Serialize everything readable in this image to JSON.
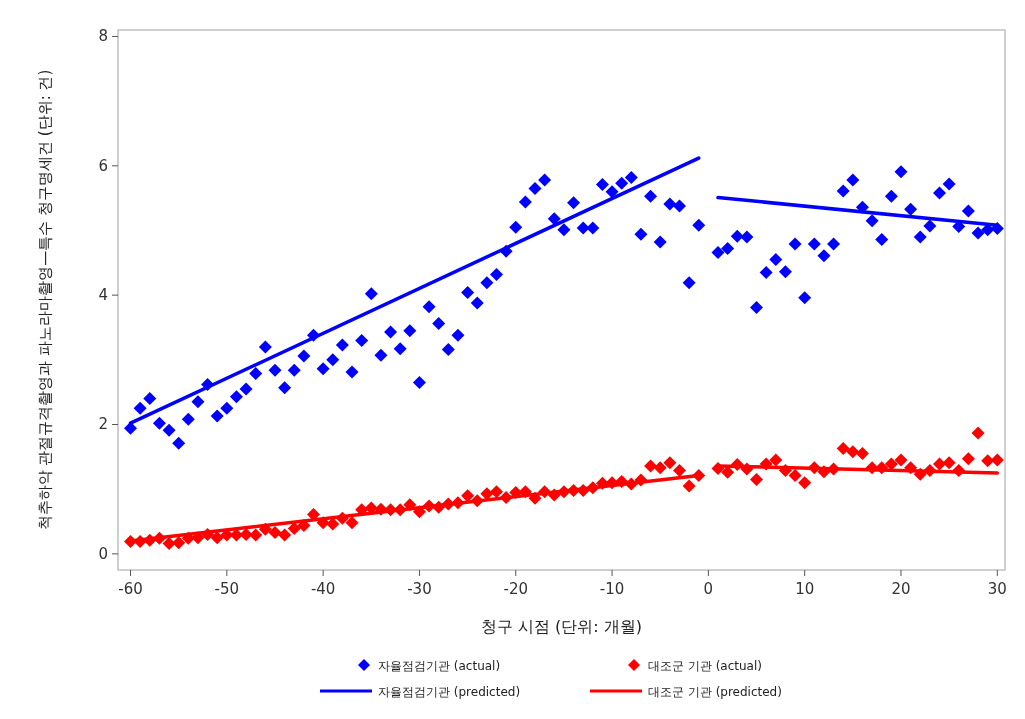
{
  "chart_data": {
    "type": "scatter",
    "xlabel": "청구 시점 (단위: 개월)",
    "ylabel": "척추하악 관절규격촬영과 파노라마촬영—특수 청구명세건 (단위: 건)",
    "xlim": [
      -61.3,
      30.8
    ],
    "ylim": [
      -0.25,
      8.1
    ],
    "xticks": [
      -60,
      -50,
      -40,
      -30,
      -20,
      -10,
      0,
      10,
      20,
      30
    ],
    "yticks": [
      0,
      2,
      4,
      6,
      8
    ],
    "grid": false,
    "legend": "bottom",
    "series": [
      {
        "name": "자율점검기관 (actual)",
        "type": "scatter",
        "marker": "diamond",
        "color": "#0000ff",
        "x": [
          -60,
          -59,
          -58,
          -57,
          -56,
          -55,
          -54,
          -53,
          -52,
          -51,
          -50,
          -49,
          -48,
          -47,
          -46,
          -45,
          -44,
          -43,
          -42,
          -41,
          -40,
          -39,
          -38,
          -37,
          -36,
          -35,
          -34,
          -33,
          -32,
          -31,
          -30,
          -29,
          -28,
          -27,
          -26,
          -25,
          -24,
          -23,
          -22,
          -21,
          -20,
          -19,
          -18,
          -17,
          -16,
          -15,
          -14,
          -13,
          -12,
          -11,
          -10,
          -9,
          -8,
          -7,
          -6,
          -5,
          -4,
          -3,
          -2,
          -1,
          1,
          2,
          3,
          4,
          5,
          6,
          7,
          8,
          9,
          10,
          11,
          12,
          13,
          14,
          15,
          16,
          17,
          18,
          19,
          20,
          21,
          22,
          23,
          24,
          25,
          26,
          27,
          28,
          29,
          30
        ],
        "values": [
          1.94,
          2.25,
          2.4,
          2.02,
          1.91,
          1.71,
          2.08,
          2.35,
          2.62,
          2.13,
          2.25,
          2.43,
          2.55,
          2.79,
          3.2,
          2.84,
          2.57,
          2.84,
          3.06,
          3.38,
          2.86,
          3.0,
          3.23,
          2.81,
          3.3,
          4.02,
          3.07,
          3.43,
          3.17,
          3.45,
          2.65,
          3.82,
          3.56,
          3.16,
          3.38,
          4.04,
          3.88,
          4.19,
          4.32,
          4.68,
          5.05,
          5.44,
          5.65,
          5.78,
          5.18,
          5.01,
          5.43,
          5.04,
          5.04,
          5.71,
          5.6,
          5.73,
          5.82,
          4.94,
          5.53,
          4.82,
          5.41,
          5.38,
          4.19,
          5.08,
          4.66,
          4.72,
          4.91,
          4.9,
          3.81,
          4.35,
          4.55,
          4.36,
          4.79,
          3.96,
          4.79,
          4.61,
          4.79,
          5.61,
          5.78,
          5.36,
          5.15,
          4.86,
          5.53,
          5.91,
          5.33,
          4.9,
          5.07,
          5.58,
          5.72,
          5.06,
          5.3,
          4.96,
          5.01,
          5.03
        ]
      },
      {
        "name": "대조군 기관 (actual)",
        "type": "scatter",
        "marker": "diamond",
        "color": "#ff0000",
        "x": [
          -60,
          -59,
          -58,
          -57,
          -56,
          -55,
          -54,
          -53,
          -52,
          -51,
          -50,
          -49,
          -48,
          -47,
          -46,
          -45,
          -44,
          -43,
          -42,
          -41,
          -40,
          -39,
          -38,
          -37,
          -36,
          -35,
          -34,
          -33,
          -32,
          -31,
          -30,
          -29,
          -28,
          -27,
          -26,
          -25,
          -24,
          -23,
          -22,
          -21,
          -20,
          -19,
          -18,
          -17,
          -16,
          -15,
          -14,
          -13,
          -12,
          -11,
          -10,
          -9,
          -8,
          -7,
          -6,
          -5,
          -4,
          -3,
          -2,
          -1,
          1,
          2,
          3,
          4,
          5,
          6,
          7,
          8,
          9,
          10,
          11,
          12,
          13,
          14,
          15,
          16,
          17,
          18,
          19,
          20,
          21,
          22,
          23,
          24,
          25,
          26,
          27,
          28,
          29,
          30
        ],
        "values": [
          0.19,
          0.19,
          0.21,
          0.24,
          0.16,
          0.17,
          0.24,
          0.25,
          0.3,
          0.25,
          0.29,
          0.29,
          0.3,
          0.29,
          0.38,
          0.33,
          0.29,
          0.39,
          0.44,
          0.61,
          0.48,
          0.46,
          0.55,
          0.48,
          0.68,
          0.71,
          0.69,
          0.68,
          0.68,
          0.76,
          0.65,
          0.74,
          0.72,
          0.77,
          0.79,
          0.9,
          0.82,
          0.93,
          0.96,
          0.87,
          0.95,
          0.96,
          0.86,
          0.96,
          0.91,
          0.96,
          0.98,
          0.98,
          1.02,
          1.09,
          1.1,
          1.12,
          1.08,
          1.14,
          1.36,
          1.33,
          1.41,
          1.29,
          1.05,
          1.21,
          1.32,
          1.26,
          1.38,
          1.31,
          1.15,
          1.39,
          1.45,
          1.29,
          1.21,
          1.1,
          1.33,
          1.27,
          1.31,
          1.63,
          1.58,
          1.55,
          1.33,
          1.33,
          1.39,
          1.45,
          1.33,
          1.23,
          1.29,
          1.39,
          1.41,
          1.29,
          1.47,
          1.87,
          1.44,
          1.45
        ]
      },
      {
        "name": "자율점검기관 (predicted)",
        "type": "line",
        "marker": "none",
        "color": "#0000ff",
        "line_style": "solid",
        "x": [
          -60,
          -1,
          0,
          1,
          30
        ],
        "values": [
          2.02,
          6.12,
          null,
          5.51,
          5.08
        ]
      },
      {
        "name": "대조군 기관 (predicted)",
        "type": "line",
        "marker": "none",
        "color": "#ff0000",
        "line_style": "solid",
        "x": [
          -60,
          -1,
          0,
          1,
          30
        ],
        "values": [
          0.2,
          1.21,
          null,
          1.36,
          1.25
        ]
      }
    ]
  }
}
